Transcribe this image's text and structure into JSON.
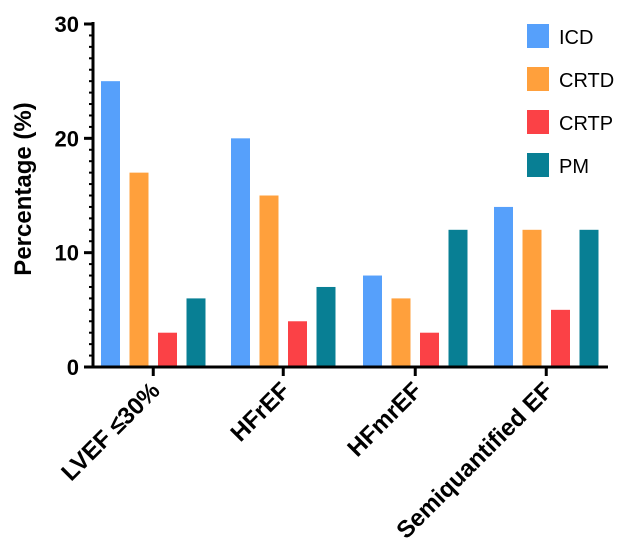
{
  "chart_data": {
    "type": "bar",
    "categories": [
      "LVEF ≤30%",
      "HFrEF",
      "HFmrEF",
      "Semiquantified EF"
    ],
    "series": [
      {
        "name": "ICD",
        "color": "#56a0fb",
        "values": [
          25,
          20,
          8,
          14
        ]
      },
      {
        "name": "CRTD",
        "color": "#ffa03c",
        "values": [
          17,
          15,
          6,
          12
        ]
      },
      {
        "name": "CRTP",
        "color": "#fb4146",
        "values": [
          3,
          4,
          3,
          5
        ]
      },
      {
        "name": "PM",
        "color": "#087f94",
        "values": [
          6,
          7,
          12,
          12
        ]
      }
    ],
    "title": "",
    "xlabel": "",
    "ylabel": "Percentage (%)",
    "ylim": [
      0,
      30
    ],
    "yticks": [
      "0",
      "10",
      "20",
      "30"
    ],
    "grid": false,
    "legend_position": "top-right"
  }
}
